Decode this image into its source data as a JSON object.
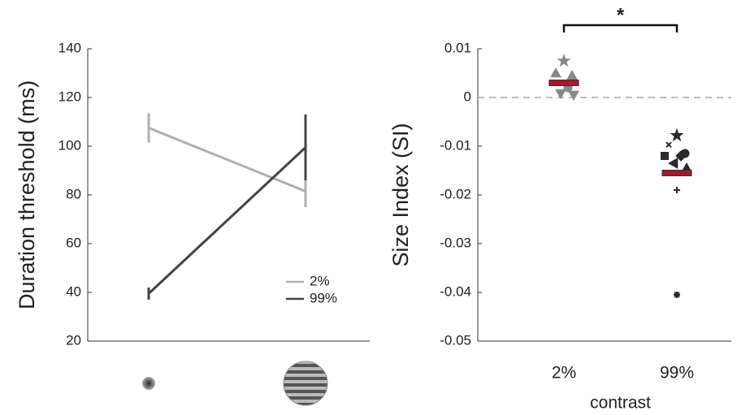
{
  "chart_data": [
    {
      "type": "line",
      "ylabel": "Duration threshold (ms)",
      "categories": [
        null,
        null
      ],
      "ylim": [
        20,
        140
      ],
      "yticks": [
        20,
        40,
        60,
        80,
        100,
        120,
        140
      ],
      "legend": "lower right",
      "series": [
        {
          "name": "2%",
          "color": "#b0b0b0",
          "values": [
            107.5,
            81.5
          ],
          "errors": [
            6,
            6.5
          ]
        },
        {
          "name": "99%",
          "color": "#444444",
          "values": [
            39.5,
            99.5
          ],
          "errors": [
            2.5,
            13.5
          ]
        }
      ]
    },
    {
      "type": "strip",
      "ylabel": "Size Index (SI)",
      "xlabel": "contrast",
      "categories": [
        "2%",
        "99%"
      ],
      "ylim": [
        -0.05,
        0.01
      ],
      "yticks": [
        -0.05,
        -0.04,
        -0.03,
        -0.02,
        -0.01,
        0,
        0.01
      ],
      "reference_line": 0,
      "annotation": "*",
      "mean_color": "#a6192e",
      "groups": [
        {
          "color": "#888888",
          "mean": 0.003,
          "points": [
            0.0075,
            0.005,
            0.0045,
            0.003,
            0.002,
            0.0008,
            0.0005
          ],
          "markers": [
            "star",
            "triangle",
            "triangle",
            "plus",
            "circle",
            "triangle-down",
            "triangle-down"
          ]
        },
        {
          "color": "#2a2a2a",
          "mean": -0.0155,
          "points": [
            -0.0078,
            -0.0097,
            -0.0115,
            -0.012,
            -0.012,
            -0.0135,
            -0.0145,
            -0.019,
            -0.0405
          ],
          "markers": [
            "star",
            "x",
            "circle",
            "square",
            "diamond",
            "triangle-left",
            "triangle",
            "plus",
            "asterisk"
          ]
        }
      ]
    }
  ]
}
